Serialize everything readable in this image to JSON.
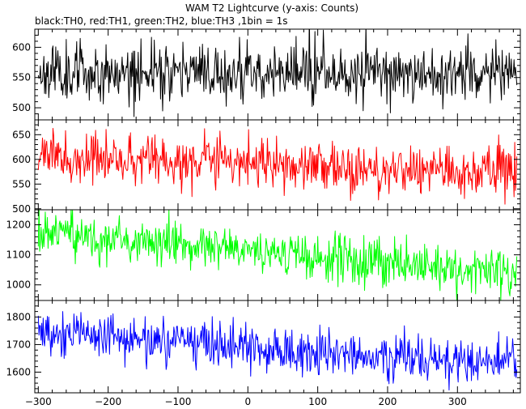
{
  "chart_data": {
    "type": "line",
    "title": "WAM T2 Lightcurve (y-axis: Counts)",
    "subtitle": "black:TH0, red:TH1, green:TH2, blue:TH3 ,1bin = 1s",
    "xlabel": "",
    "xlim": [
      -305,
      390
    ],
    "x_ticks": [
      -300,
      -200,
      -100,
      0,
      100,
      200,
      300
    ],
    "x_start": -300,
    "x_end": 385,
    "bin": 1,
    "panels": [
      {
        "name": "TH0",
        "color": "#000000",
        "ylim": [
          480,
          630
        ],
        "y_ticks": [
          500,
          550,
          600
        ],
        "trend": [
          [
            -300,
            560
          ],
          [
            385,
            558
          ]
        ],
        "noise": 23,
        "seed": 11
      },
      {
        "name": "TH1",
        "color": "#ff0000",
        "ylim": [
          498,
          680
        ],
        "y_ticks": [
          500,
          550,
          600,
          650
        ],
        "trend": [
          [
            -300,
            605
          ],
          [
            385,
            572
          ]
        ],
        "noise": 24,
        "seed": 23
      },
      {
        "name": "TH2",
        "color": "#00ff00",
        "ylim": [
          948,
          1250
        ],
        "y_ticks": [
          1000,
          1100,
          1200
        ],
        "trend": [
          [
            -300,
            1170
          ],
          [
            385,
            1040
          ]
        ],
        "noise": 38,
        "seed": 37
      },
      {
        "name": "TH3",
        "color": "#0000ff",
        "ylim": [
          1525,
          1860
        ],
        "y_ticks": [
          1600,
          1700,
          1800
        ],
        "trend": [
          [
            -300,
            1745
          ],
          [
            385,
            1625
          ]
        ],
        "noise": 42,
        "seed": 53
      }
    ]
  }
}
